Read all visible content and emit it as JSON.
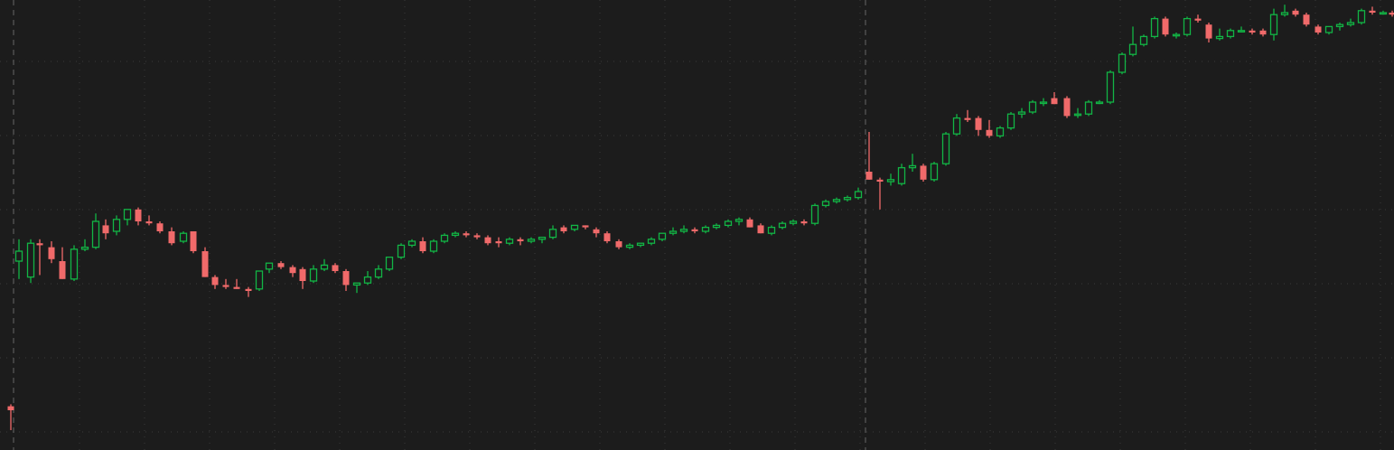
{
  "theme": {
    "background": "#1c1c1c",
    "grid_color": "#3a3a3a",
    "session_line_color": "#5a5a5a",
    "up_color": "#12b545",
    "down_color": "#f06a6a"
  },
  "chart_data": {
    "type": "candlestick",
    "title": "",
    "xlabel": "",
    "ylabel": "",
    "grid": true,
    "ylim": [
      0,
      100
    ],
    "xlim": [
      0,
      1543
    ],
    "session_breaks_x": [
      15,
      958
    ],
    "candles": [
      {
        "x": 12,
        "o": 6,
        "h": 6.5,
        "l": 0,
        "c": 5
      },
      {
        "x": 21,
        "o": 42.5,
        "h": 48,
        "l": 38,
        "c": 45
      },
      {
        "x": 34,
        "o": 38.5,
        "h": 48,
        "l": 37,
        "c": 47
      },
      {
        "x": 44,
        "o": 47,
        "h": 48,
        "l": 39,
        "c": 46.5
      },
      {
        "x": 57,
        "o": 46,
        "h": 47.5,
        "l": 42,
        "c": 43
      },
      {
        "x": 69,
        "o": 42.5,
        "h": 46,
        "l": 38,
        "c": 38
      },
      {
        "x": 82,
        "o": 38,
        "h": 46.5,
        "l": 37.5,
        "c": 45.5
      },
      {
        "x": 94,
        "o": 45.5,
        "h": 48,
        "l": 45,
        "c": 46
      },
      {
        "x": 106,
        "o": 46,
        "h": 54.5,
        "l": 45.5,
        "c": 52.5
      },
      {
        "x": 117,
        "o": 51.5,
        "h": 53,
        "l": 48,
        "c": 49.5
      },
      {
        "x": 129,
        "o": 50,
        "h": 54,
        "l": 49,
        "c": 53
      },
      {
        "x": 141,
        "o": 53,
        "h": 55.5,
        "l": 51.5,
        "c": 55.5
      },
      {
        "x": 153,
        "o": 55.5,
        "h": 56,
        "l": 51.5,
        "c": 52.5
      },
      {
        "x": 165,
        "o": 52.5,
        "h": 54,
        "l": 51.5,
        "c": 52
      },
      {
        "x": 177,
        "o": 52,
        "h": 52.5,
        "l": 49.5,
        "c": 50
      },
      {
        "x": 190,
        "o": 50,
        "h": 51,
        "l": 46.5,
        "c": 47
      },
      {
        "x": 203,
        "o": 47.5,
        "h": 50,
        "l": 47,
        "c": 49.5
      },
      {
        "x": 214,
        "o": 50,
        "h": 50,
        "l": 44.5,
        "c": 45
      },
      {
        "x": 227,
        "o": 45,
        "h": 46,
        "l": 38.5,
        "c": 38.5
      },
      {
        "x": 238,
        "o": 38.5,
        "h": 39,
        "l": 35.5,
        "c": 36.5
      },
      {
        "x": 250,
        "o": 36.5,
        "h": 38,
        "l": 35.5,
        "c": 36
      },
      {
        "x": 262,
        "o": 36,
        "h": 38,
        "l": 35.5,
        "c": 35.5
      },
      {
        "x": 275,
        "o": 35.5,
        "h": 36,
        "l": 33.5,
        "c": 35
      },
      {
        "x": 287,
        "o": 35.5,
        "h": 40,
        "l": 35,
        "c": 40
      },
      {
        "x": 298,
        "o": 40.5,
        "h": 42,
        "l": 39.5,
        "c": 42
      },
      {
        "x": 311,
        "o": 42,
        "h": 42.5,
        "l": 40.5,
        "c": 41
      },
      {
        "x": 324,
        "o": 41,
        "h": 41.5,
        "l": 38.5,
        "c": 39.5
      },
      {
        "x": 335,
        "o": 40.5,
        "h": 41,
        "l": 35.5,
        "c": 37.5
      },
      {
        "x": 347,
        "o": 37.5,
        "h": 41.5,
        "l": 37,
        "c": 40.5
      },
      {
        "x": 359,
        "o": 40.5,
        "h": 43,
        "l": 40,
        "c": 41.5
      },
      {
        "x": 371,
        "o": 41.5,
        "h": 42,
        "l": 39.5,
        "c": 40
      },
      {
        "x": 383,
        "o": 40,
        "h": 40.5,
        "l": 35,
        "c": 36.5
      },
      {
        "x": 395,
        "o": 36.5,
        "h": 37,
        "l": 34.5,
        "c": 37
      },
      {
        "x": 407,
        "o": 37,
        "h": 40,
        "l": 36.5,
        "c": 38.5
      },
      {
        "x": 419,
        "o": 38.5,
        "h": 41.5,
        "l": 38,
        "c": 40.5
      },
      {
        "x": 431,
        "o": 40.5,
        "h": 43.5,
        "l": 40,
        "c": 43.5
      },
      {
        "x": 444,
        "o": 43.5,
        "h": 47,
        "l": 43,
        "c": 46.5
      },
      {
        "x": 456,
        "o": 46.5,
        "h": 48,
        "l": 46,
        "c": 47.5
      },
      {
        "x": 468,
        "o": 47.5,
        "h": 48.5,
        "l": 44.5,
        "c": 45
      },
      {
        "x": 480,
        "o": 45,
        "h": 48,
        "l": 44.5,
        "c": 47.5
      },
      {
        "x": 492,
        "o": 47.5,
        "h": 49.5,
        "l": 47,
        "c": 49
      },
      {
        "x": 504,
        "o": 49,
        "h": 50,
        "l": 48.5,
        "c": 49.5
      },
      {
        "x": 516,
        "o": 49.5,
        "h": 50,
        "l": 48.5,
        "c": 49
      },
      {
        "x": 528,
        "o": 49,
        "h": 49.5,
        "l": 48,
        "c": 48.5
      },
      {
        "x": 540,
        "o": 48.5,
        "h": 49,
        "l": 46.5,
        "c": 47
      },
      {
        "x": 552,
        "o": 47.5,
        "h": 48.5,
        "l": 46,
        "c": 47
      },
      {
        "x": 564,
        "o": 47,
        "h": 48.5,
        "l": 46.5,
        "c": 48
      },
      {
        "x": 576,
        "o": 48,
        "h": 48.5,
        "l": 46.5,
        "c": 47.5
      },
      {
        "x": 588,
        "o": 47.5,
        "h": 48.5,
        "l": 47,
        "c": 48
      },
      {
        "x": 600,
        "o": 48,
        "h": 48.5,
        "l": 47,
        "c": 48.5
      },
      {
        "x": 612,
        "o": 48.5,
        "h": 51.5,
        "l": 48,
        "c": 50.5
      },
      {
        "x": 624,
        "o": 51,
        "h": 51.5,
        "l": 49.5,
        "c": 50
      },
      {
        "x": 636,
        "o": 50.5,
        "h": 51.5,
        "l": 50,
        "c": 51.5
      },
      {
        "x": 648,
        "o": 51.5,
        "h": 51.5,
        "l": 50.5,
        "c": 51
      },
      {
        "x": 660,
        "o": 50.5,
        "h": 51,
        "l": 48.5,
        "c": 49.5
      },
      {
        "x": 672,
        "o": 49.5,
        "h": 50,
        "l": 47,
        "c": 47.5
      },
      {
        "x": 685,
        "o": 47.5,
        "h": 48,
        "l": 45.5,
        "c": 46
      },
      {
        "x": 697,
        "o": 46,
        "h": 47,
        "l": 45.5,
        "c": 46.5
      },
      {
        "x": 709,
        "o": 46.5,
        "h": 47,
        "l": 46,
        "c": 47
      },
      {
        "x": 721,
        "o": 47,
        "h": 48.5,
        "l": 46.5,
        "c": 48
      },
      {
        "x": 733,
        "o": 48,
        "h": 49.5,
        "l": 47.5,
        "c": 49.5
      },
      {
        "x": 745,
        "o": 49.5,
        "h": 51,
        "l": 49,
        "c": 50
      },
      {
        "x": 757,
        "o": 50,
        "h": 51.5,
        "l": 49.5,
        "c": 50.5
      },
      {
        "x": 769,
        "o": 50.5,
        "h": 51,
        "l": 49.5,
        "c": 50
      },
      {
        "x": 781,
        "o": 50,
        "h": 51.5,
        "l": 49.5,
        "c": 51
      },
      {
        "x": 793,
        "o": 51,
        "h": 52,
        "l": 50.5,
        "c": 51.5
      },
      {
        "x": 806,
        "o": 51.5,
        "h": 53,
        "l": 51,
        "c": 52.5
      },
      {
        "x": 818,
        "o": 52.5,
        "h": 53.5,
        "l": 51.5,
        "c": 53
      },
      {
        "x": 830,
        "o": 53,
        "h": 53.5,
        "l": 51,
        "c": 51
      },
      {
        "x": 842,
        "o": 51.5,
        "h": 52,
        "l": 49.5,
        "c": 49.5
      },
      {
        "x": 854,
        "o": 49.5,
        "h": 51.5,
        "l": 49,
        "c": 51
      },
      {
        "x": 866,
        "o": 51,
        "h": 52.5,
        "l": 50.5,
        "c": 52
      },
      {
        "x": 878,
        "o": 52,
        "h": 53,
        "l": 51.5,
        "c": 52.5
      },
      {
        "x": 890,
        "o": 52.5,
        "h": 53,
        "l": 51.5,
        "c": 52
      },
      {
        "x": 902,
        "o": 52,
        "h": 57,
        "l": 51.5,
        "c": 56.5
      },
      {
        "x": 914,
        "o": 56.5,
        "h": 58,
        "l": 56,
        "c": 57.5
      },
      {
        "x": 926,
        "o": 57.5,
        "h": 58.5,
        "l": 57,
        "c": 58
      },
      {
        "x": 938,
        "o": 58,
        "h": 59,
        "l": 57.5,
        "c": 58.5
      },
      {
        "x": 950,
        "o": 58.5,
        "h": 61,
        "l": 58,
        "c": 60
      },
      {
        "x": 962,
        "o": 65,
        "h": 75,
        "l": 63,
        "c": 63
      },
      {
        "x": 974,
        "o": 63,
        "h": 63.5,
        "l": 55.5,
        "c": 62.5
      },
      {
        "x": 986,
        "o": 62.5,
        "h": 64.5,
        "l": 61.5,
        "c": 63
      },
      {
        "x": 998,
        "o": 62,
        "h": 67,
        "l": 61.5,
        "c": 66
      },
      {
        "x": 1010,
        "o": 66,
        "h": 69.5,
        "l": 65,
        "c": 66.5
      },
      {
        "x": 1022,
        "o": 66.5,
        "h": 67,
        "l": 62.5,
        "c": 63
      },
      {
        "x": 1034,
        "o": 63,
        "h": 67.5,
        "l": 62.5,
        "c": 67
      },
      {
        "x": 1047,
        "o": 67,
        "h": 75,
        "l": 66.5,
        "c": 74.5
      },
      {
        "x": 1059,
        "o": 74.5,
        "h": 79.5,
        "l": 74,
        "c": 78.5
      },
      {
        "x": 1071,
        "o": 78.5,
        "h": 80.5,
        "l": 77.5,
        "c": 78
      },
      {
        "x": 1083,
        "o": 78.5,
        "h": 79,
        "l": 74,
        "c": 75.5
      },
      {
        "x": 1095,
        "o": 75.5,
        "h": 78,
        "l": 73.5,
        "c": 74
      },
      {
        "x": 1107,
        "o": 74,
        "h": 76.5,
        "l": 73.5,
        "c": 76
      },
      {
        "x": 1119,
        "o": 76,
        "h": 80,
        "l": 75.5,
        "c": 79.5
      },
      {
        "x": 1131,
        "o": 79.5,
        "h": 81,
        "l": 78.5,
        "c": 80
      },
      {
        "x": 1143,
        "o": 80,
        "h": 83,
        "l": 79.5,
        "c": 82.5
      },
      {
        "x": 1155,
        "o": 82.5,
        "h": 83.5,
        "l": 81.5,
        "c": 82.5
      },
      {
        "x": 1167,
        "o": 83.5,
        "h": 85,
        "l": 82,
        "c": 82
      },
      {
        "x": 1181,
        "o": 83.5,
        "h": 84,
        "l": 78.5,
        "c": 79
      },
      {
        "x": 1193,
        "o": 79.5,
        "h": 81,
        "l": 78.5,
        "c": 79.5
      },
      {
        "x": 1205,
        "o": 79.5,
        "h": 83,
        "l": 79,
        "c": 82.5
      },
      {
        "x": 1217,
        "o": 82.5,
        "h": 83,
        "l": 82,
        "c": 82.5
      },
      {
        "x": 1229,
        "o": 82.5,
        "h": 90.5,
        "l": 82,
        "c": 90
      },
      {
        "x": 1242,
        "o": 90,
        "h": 95,
        "l": 89.5,
        "c": 94.5
      },
      {
        "x": 1254,
        "o": 94.5,
        "h": 101.5,
        "l": 94,
        "c": 97
      },
      {
        "x": 1266,
        "o": 97,
        "h": 99.5,
        "l": 96.5,
        "c": 99
      },
      {
        "x": 1278,
        "o": 99,
        "h": 104,
        "l": 98.5,
        "c": 103.5
      },
      {
        "x": 1290,
        "o": 103.5,
        "h": 104,
        "l": 99,
        "c": 99.5
      },
      {
        "x": 1302,
        "o": 99.5,
        "h": 100,
        "l": 98.5,
        "c": 99.5
      },
      {
        "x": 1314,
        "o": 99.5,
        "h": 104,
        "l": 99,
        "c": 103.5
      },
      {
        "x": 1326,
        "o": 103.5,
        "h": 104.5,
        "l": 102.5,
        "c": 103
      },
      {
        "x": 1338,
        "o": 102,
        "h": 102.5,
        "l": 97.5,
        "c": 98.5
      },
      {
        "x": 1350,
        "o": 98.5,
        "h": 101,
        "l": 98,
        "c": 99
      },
      {
        "x": 1362,
        "o": 99,
        "h": 101,
        "l": 98.5,
        "c": 100.5
      },
      {
        "x": 1374,
        "o": 100.5,
        "h": 101.5,
        "l": 100,
        "c": 100.5
      },
      {
        "x": 1386,
        "o": 100.5,
        "h": 101,
        "l": 99.5,
        "c": 100
      },
      {
        "x": 1398,
        "o": 100.5,
        "h": 101,
        "l": 99,
        "c": 99.5
      },
      {
        "x": 1410,
        "o": 99.5,
        "h": 106,
        "l": 98,
        "c": 104.5
      },
      {
        "x": 1422,
        "o": 104.5,
        "h": 107,
        "l": 104,
        "c": 105
      },
      {
        "x": 1434,
        "o": 105.5,
        "h": 106,
        "l": 104,
        "c": 104.5
      },
      {
        "x": 1446,
        "o": 104.5,
        "h": 105,
        "l": 101.5,
        "c": 102
      },
      {
        "x": 1459,
        "o": 101.5,
        "h": 102,
        "l": 99.5,
        "c": 100
      },
      {
        "x": 1471,
        "o": 100,
        "h": 101.5,
        "l": 99.5,
        "c": 101.5
      },
      {
        "x": 1483,
        "o": 101.5,
        "h": 102.5,
        "l": 100.5,
        "c": 102
      },
      {
        "x": 1495,
        "o": 102,
        "h": 103.5,
        "l": 101.5,
        "c": 102.5
      },
      {
        "x": 1507,
        "o": 102.5,
        "h": 106,
        "l": 102,
        "c": 105.5
      },
      {
        "x": 1519,
        "o": 105.5,
        "h": 106.5,
        "l": 104.5,
        "c": 105
      },
      {
        "x": 1531,
        "o": 105,
        "h": 105.5,
        "l": 104.5,
        "c": 105
      },
      {
        "x": 1541,
        "o": 105,
        "h": 105.5,
        "l": 104,
        "c": 104.5
      }
    ]
  }
}
